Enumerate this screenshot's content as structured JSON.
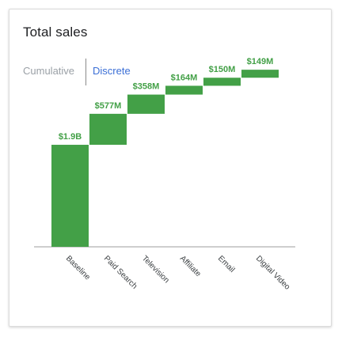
{
  "card": {
    "title": "Total sales"
  },
  "tabs": [
    {
      "label": "Cumulative",
      "active": false
    },
    {
      "label": "Discrete",
      "active": true
    }
  ],
  "colors": {
    "bar": "#43a047",
    "label": "#43a047",
    "axis": "#9e9e9e",
    "active_tab": "#3b6fd6",
    "inactive_tab": "#9aa0a6"
  },
  "chart_data": {
    "type": "bar",
    "subtype": "waterfall",
    "title": "",
    "categories": [
      "Baseline",
      "Paid Search",
      "Television",
      "Affiliate",
      "Email",
      "Digital Video"
    ],
    "values": [
      1900,
      577,
      358,
      164,
      150,
      149
    ],
    "value_units": "$M",
    "data_labels": [
      "$1.9B",
      "$577M",
      "$358M",
      "$164M",
      "$150M",
      "$149M"
    ],
    "ylim": [
      0,
      3300
    ],
    "grid": false,
    "legend": "none",
    "xlabel": "",
    "ylabel": ""
  }
}
